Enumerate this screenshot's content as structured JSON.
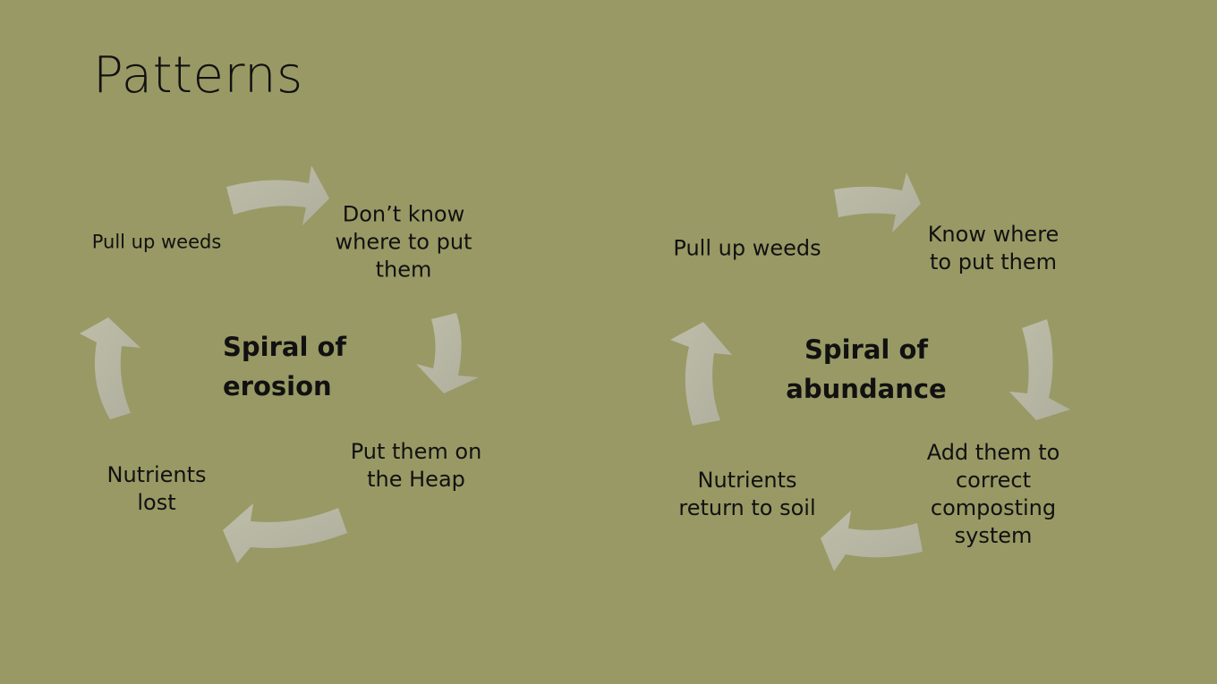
{
  "slide": {
    "title": "Patterns",
    "background": "#999965",
    "arrow_color": "#bab9a9"
  },
  "cycles": [
    {
      "center_label_lines": [
        "Spiral of",
        "erosion"
      ],
      "nodes": [
        {
          "lines": [
            "Pull up weeds"
          ]
        },
        {
          "lines": [
            "Don’t know",
            "where to put",
            "them"
          ]
        },
        {
          "lines": [
            "Put them on",
            "the Heap"
          ]
        },
        {
          "lines": [
            "Nutrients",
            "lost"
          ]
        }
      ]
    },
    {
      "center_label_lines": [
        "Spiral of",
        "abundance"
      ],
      "nodes": [
        {
          "lines": [
            "Pull up weeds"
          ]
        },
        {
          "lines": [
            "Know where",
            "to put them"
          ]
        },
        {
          "lines": [
            "Add them to",
            "correct",
            "composting",
            "system"
          ]
        },
        {
          "lines": [
            "Nutrients",
            "return to soil"
          ]
        }
      ]
    }
  ]
}
